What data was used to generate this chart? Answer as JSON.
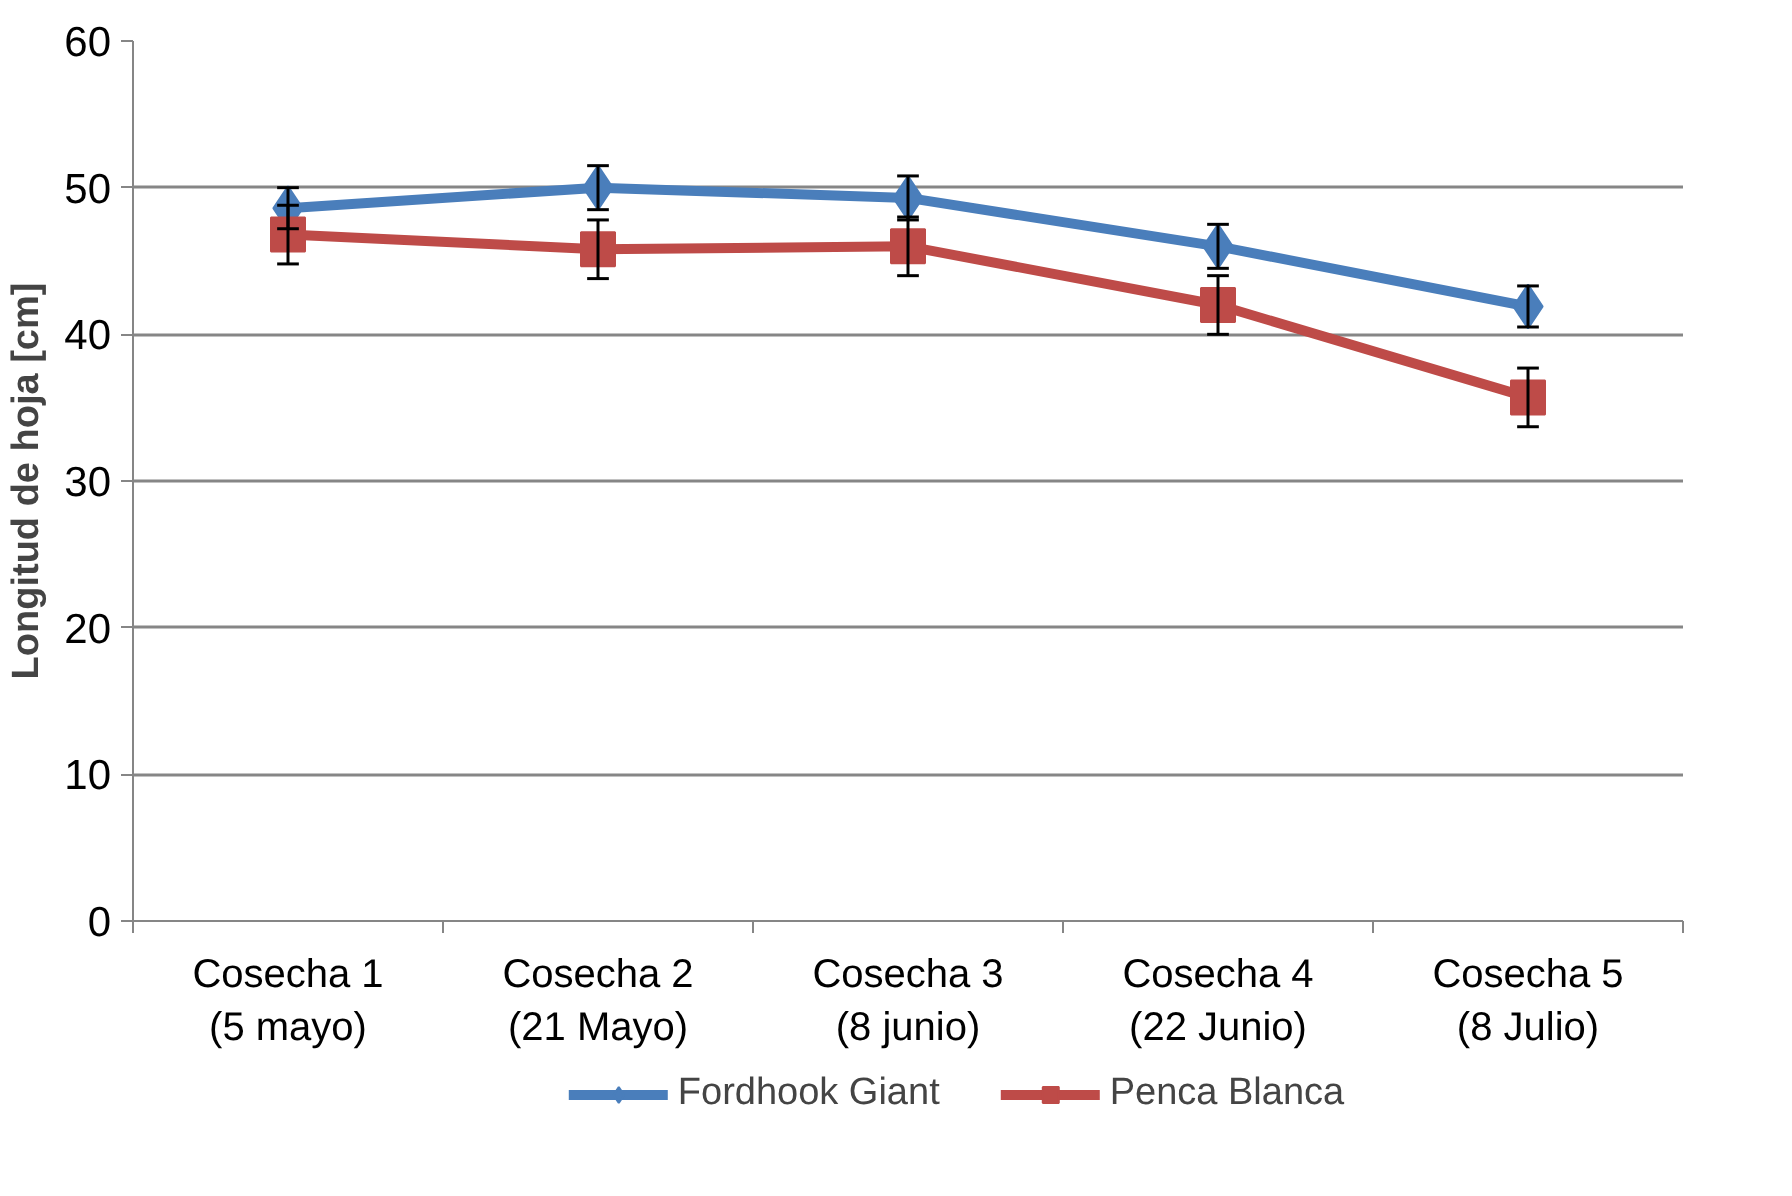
{
  "chart_data": {
    "type": "line",
    "ylabel": "Longitud de hoja [cm]",
    "categories": [
      "Cosecha 1\n(5 mayo)",
      "Cosecha 2\n(21 Mayo)",
      "Cosecha 3\n(8 junio)",
      "Cosecha 4\n(22 Junio)",
      "Cosecha 5\n(8 Julio)"
    ],
    "series": [
      {
        "name": "Fordhook Giant",
        "color": "#4a7ebb",
        "marker": "diamond",
        "values": [
          48.6,
          50.0,
          49.3,
          46.0,
          41.9
        ],
        "errors": [
          1.4,
          1.5,
          1.5,
          1.5,
          1.4
        ]
      },
      {
        "name": "Penca Blanca",
        "color": "#be4b48",
        "marker": "square",
        "values": [
          46.8,
          45.8,
          46.0,
          42.0,
          35.7
        ],
        "errors": [
          2.0,
          2.0,
          2.0,
          2.0,
          2.0
        ]
      }
    ],
    "ylim": [
      0,
      60
    ],
    "yticks": [
      0,
      10,
      20,
      30,
      40,
      50,
      60
    ],
    "grid": "y",
    "legend": "bottom",
    "line_style": "solid"
  }
}
